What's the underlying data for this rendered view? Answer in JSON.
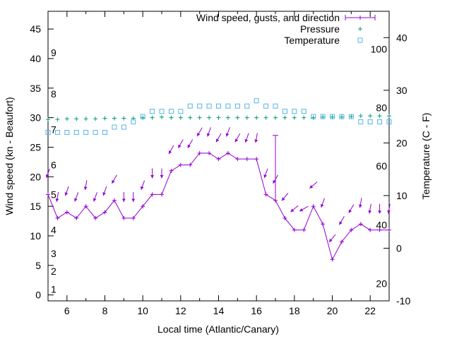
{
  "chart_data": {
    "type": "line",
    "xlabel": "Local time (Atlantic/Canary)",
    "ylabel": "Wind speed (kn - Beaufort)",
    "y2label": "Temperature (C - F)",
    "xlim": [
      5,
      23
    ],
    "ylim": [
      -1,
      48
    ],
    "y2lim": [
      -10,
      45
    ],
    "x_ticks": [
      6,
      8,
      10,
      12,
      14,
      16,
      18,
      20,
      22
    ],
    "y_ticks": [
      0,
      5,
      10,
      15,
      20,
      25,
      30,
      35,
      40,
      45
    ],
    "y2_ticks": [
      -10,
      0,
      10,
      20,
      30,
      40
    ],
    "beaufort_labels": [
      {
        "label": "1",
        "y": 1
      },
      {
        "label": "2",
        "y": 4
      },
      {
        "label": "3",
        "y": 7
      },
      {
        "label": "4",
        "y": 11
      },
      {
        "label": "5",
        "y": 17
      },
      {
        "label": "6",
        "y": 22
      },
      {
        "label": "7",
        "y": 28
      },
      {
        "label": "8",
        "y": 34
      },
      {
        "label": "9",
        "y": 41
      }
    ],
    "fahrenheit_labels": [
      {
        "label": "20",
        "t": -6.7
      },
      {
        "label": "40",
        "t": 4.4
      },
      {
        "label": "60",
        "t": 15.6
      },
      {
        "label": "80",
        "t": 26.7
      },
      {
        "label": "100",
        "t": 37.8
      }
    ],
    "legend": {
      "position": "top-right",
      "entries": [
        "Wind speed, gusts, and direction",
        "Pressure",
        "Temperature"
      ]
    },
    "colors": {
      "wind": "#9400d3",
      "pressure": "#009e73",
      "temperature": "#56b4e9"
    },
    "series": [
      {
        "name": "Wind speed, gusts, and direction",
        "x": [
          5,
          5.5,
          6,
          6.5,
          7,
          7.5,
          8,
          8.5,
          9,
          9.5,
          10,
          10.5,
          11,
          11.5,
          12,
          12.5,
          13,
          13.5,
          14,
          14.5,
          15,
          15.5,
          16,
          16.5,
          17,
          17.5,
          18,
          18.5,
          19,
          19.5,
          20,
          20.5,
          21,
          21.5,
          22,
          22.5,
          23
        ],
        "values": [
          17,
          13,
          14,
          13,
          15,
          13,
          14,
          16,
          13,
          13,
          15,
          17,
          17,
          21,
          22,
          22,
          24,
          24,
          23,
          24,
          23,
          23,
          23,
          17,
          16,
          13,
          11,
          11,
          15,
          12,
          6,
          9,
          11,
          12,
          11,
          11,
          11
        ],
        "gusts": [
          {
            "x": 17,
            "value": 27
          }
        ],
        "direction_deg": [
          20,
          10,
          20,
          20,
          10,
          20,
          20,
          30,
          0,
          0,
          20,
          0,
          0,
          30,
          30,
          30,
          30,
          20,
          30,
          20,
          30,
          20,
          10,
          20,
          30,
          40,
          50,
          60,
          50,
          20,
          40,
          30,
          30,
          10,
          10,
          0,
          10
        ]
      },
      {
        "name": "Pressure",
        "x": [
          5,
          5.5,
          6,
          6.5,
          7,
          7.5,
          8,
          8.5,
          9,
          9.5,
          10,
          10.5,
          11,
          11.5,
          12,
          12.5,
          13,
          13.5,
          14,
          14.5,
          15,
          15.5,
          16,
          16.5,
          17,
          17.5,
          18,
          18.5,
          19,
          19.5,
          20,
          20.5,
          21,
          21.5,
          22,
          22.5,
          23
        ],
        "values": [
          29.7,
          29.7,
          29.8,
          29.8,
          29.8,
          29.8,
          29.9,
          29.9,
          29.9,
          29.9,
          30.0,
          30.0,
          30.1,
          30.0,
          30.0,
          30.0,
          30.0,
          30.0,
          30.0,
          30.0,
          30.0,
          30.0,
          30.0,
          30.0,
          30.0,
          30.0,
          30.0,
          30.0,
          30.0,
          30.1,
          30.1,
          30.1,
          30.2,
          30.3,
          30.3,
          30.3,
          30.3
        ]
      },
      {
        "name": "Temperature",
        "x": [
          5,
          5.5,
          6,
          6.5,
          7,
          7.5,
          8,
          8.5,
          9,
          9.5,
          10,
          10.5,
          11,
          11.5,
          12,
          12.5,
          13,
          13.5,
          14,
          14.5,
          15,
          15.5,
          16,
          16.5,
          17,
          17.5,
          18,
          18.5,
          19,
          19.5,
          20,
          20.5,
          21,
          21.5,
          22,
          22.5,
          23
        ],
        "values": [
          22,
          22,
          22,
          22,
          22,
          22,
          22,
          23,
          23,
          24,
          25,
          26,
          26,
          26,
          26,
          27,
          27,
          27,
          27,
          27,
          27,
          27,
          28,
          27,
          27,
          26,
          26,
          26,
          25,
          25,
          25,
          25,
          25,
          24,
          24,
          24,
          24
        ]
      }
    ]
  }
}
